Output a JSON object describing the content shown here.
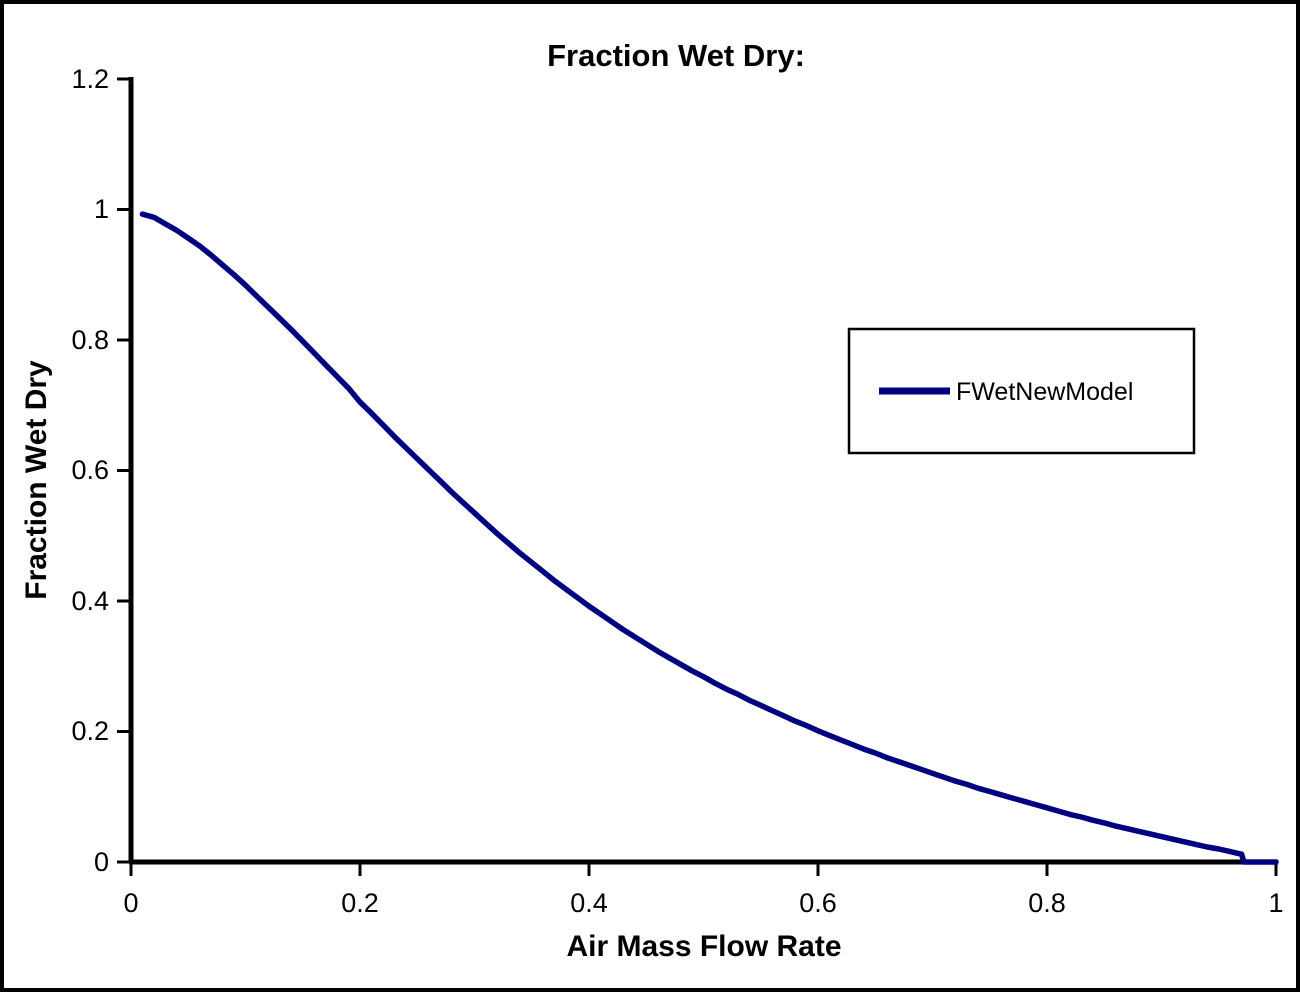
{
  "chart_data": {
    "type": "line",
    "title": "Fraction Wet Dry:",
    "xlabel": "Air Mass Flow Rate",
    "ylabel": "Fraction Wet Dry",
    "xlim": [
      0,
      1
    ],
    "ylim": [
      0,
      1.2
    ],
    "grid": false,
    "legend_position": "right-middle",
    "x_ticks": [
      "0",
      "0.2",
      "0.4",
      "0.6",
      "0.8",
      "1"
    ],
    "x_tick_values": [
      0,
      0.2,
      0.4,
      0.6,
      0.8,
      1
    ],
    "y_ticks": [
      "0",
      "0.2",
      "0.4",
      "0.6",
      "0.8",
      "1",
      "1.2"
    ],
    "y_tick_values": [
      0,
      0.2,
      0.4,
      0.6,
      0.8,
      1,
      1.2
    ],
    "colors": {
      "series": "#000080",
      "axis": "#000000",
      "background": "#ffffff"
    },
    "series": [
      {
        "name": "FWetNewModel",
        "color": "#000080",
        "points": [
          [
            0.01,
            0.993
          ],
          [
            0.02,
            0.988
          ],
          [
            0.03,
            0.978
          ],
          [
            0.04,
            0.968
          ],
          [
            0.05,
            0.956
          ],
          [
            0.06,
            0.944
          ],
          [
            0.07,
            0.93
          ],
          [
            0.08,
            0.915
          ],
          [
            0.09,
            0.9
          ],
          [
            0.1,
            0.884
          ],
          [
            0.11,
            0.867
          ],
          [
            0.12,
            0.85
          ],
          [
            0.13,
            0.833
          ],
          [
            0.14,
            0.816
          ],
          [
            0.15,
            0.798
          ],
          [
            0.16,
            0.78
          ],
          [
            0.17,
            0.762
          ],
          [
            0.18,
            0.744
          ],
          [
            0.19,
            0.726
          ],
          [
            0.2,
            0.705
          ],
          [
            0.21,
            0.688
          ],
          [
            0.22,
            0.67
          ],
          [
            0.23,
            0.652
          ],
          [
            0.24,
            0.635
          ],
          [
            0.25,
            0.618
          ],
          [
            0.26,
            0.601
          ],
          [
            0.27,
            0.584
          ],
          [
            0.28,
            0.567
          ],
          [
            0.29,
            0.551
          ],
          [
            0.3,
            0.535
          ],
          [
            0.31,
            0.519
          ],
          [
            0.32,
            0.503
          ],
          [
            0.33,
            0.488
          ],
          [
            0.34,
            0.473
          ],
          [
            0.35,
            0.459
          ],
          [
            0.36,
            0.445
          ],
          [
            0.37,
            0.431
          ],
          [
            0.38,
            0.418
          ],
          [
            0.39,
            0.405
          ],
          [
            0.4,
            0.392
          ],
          [
            0.41,
            0.38
          ],
          [
            0.42,
            0.368
          ],
          [
            0.43,
            0.356
          ],
          [
            0.44,
            0.345
          ],
          [
            0.45,
            0.334
          ],
          [
            0.46,
            0.323
          ],
          [
            0.47,
            0.313
          ],
          [
            0.48,
            0.303
          ],
          [
            0.49,
            0.293
          ],
          [
            0.5,
            0.284
          ],
          [
            0.51,
            0.274
          ],
          [
            0.52,
            0.265
          ],
          [
            0.53,
            0.257
          ],
          [
            0.54,
            0.248
          ],
          [
            0.55,
            0.24
          ],
          [
            0.56,
            0.232
          ],
          [
            0.57,
            0.224
          ],
          [
            0.58,
            0.216
          ],
          [
            0.59,
            0.209
          ],
          [
            0.6,
            0.201
          ],
          [
            0.61,
            0.194
          ],
          [
            0.62,
            0.187
          ],
          [
            0.63,
            0.18
          ],
          [
            0.64,
            0.173
          ],
          [
            0.65,
            0.167
          ],
          [
            0.66,
            0.16
          ],
          [
            0.67,
            0.154
          ],
          [
            0.68,
            0.148
          ],
          [
            0.69,
            0.142
          ],
          [
            0.7,
            0.136
          ],
          [
            0.71,
            0.13
          ],
          [
            0.72,
            0.124
          ],
          [
            0.73,
            0.119
          ],
          [
            0.74,
            0.113
          ],
          [
            0.75,
            0.108
          ],
          [
            0.76,
            0.103
          ],
          [
            0.77,
            0.098
          ],
          [
            0.78,
            0.093
          ],
          [
            0.79,
            0.088
          ],
          [
            0.8,
            0.083
          ],
          [
            0.81,
            0.078
          ],
          [
            0.82,
            0.073
          ],
          [
            0.83,
            0.069
          ],
          [
            0.84,
            0.064
          ],
          [
            0.85,
            0.06
          ],
          [
            0.86,
            0.055
          ],
          [
            0.87,
            0.051
          ],
          [
            0.88,
            0.047
          ],
          [
            0.89,
            0.043
          ],
          [
            0.9,
            0.039
          ],
          [
            0.91,
            0.035
          ],
          [
            0.92,
            0.031
          ],
          [
            0.93,
            0.027
          ],
          [
            0.94,
            0.023
          ],
          [
            0.95,
            0.02
          ],
          [
            0.96,
            0.016
          ],
          [
            0.965,
            0.014
          ],
          [
            0.97,
            0.012
          ],
          [
            0.972,
            0.0
          ],
          [
            1.0,
            0.0
          ]
        ]
      }
    ]
  }
}
